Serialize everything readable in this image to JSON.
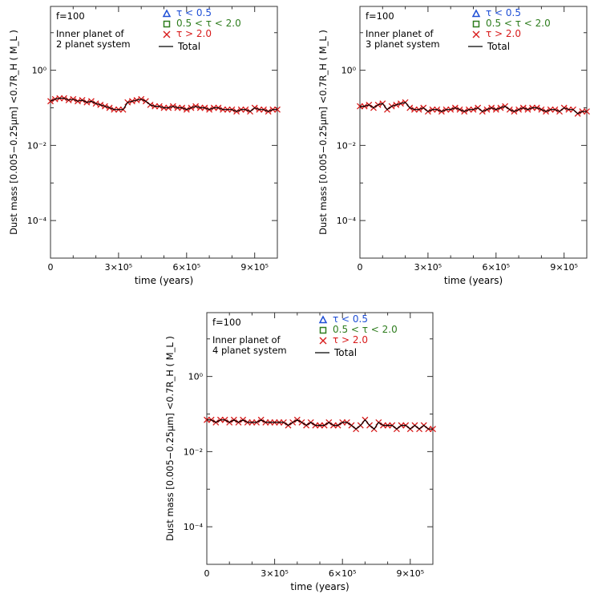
{
  "colors": {
    "triangle": "#1f4fd6",
    "square": "#2e7d1e",
    "cross": "#d81b1b",
    "total": "#000000",
    "axis": "#333333"
  },
  "chart_data": [
    {
      "type": "line",
      "annotation": "f=100",
      "label_lines": [
        "Inner planet of",
        "2 planet system"
      ],
      "xlabel": "time (years)",
      "ylabel": "Dust mass [0.005−0.25μm] <0.7R_H ( M_L )",
      "xlim": [
        0,
        1000000
      ],
      "ylim": [
        1e-05,
        50
      ],
      "yscale": "log",
      "xticks": [
        0,
        300000,
        600000,
        900000
      ],
      "xtick_labels": [
        "0",
        "3×10⁵",
        "6×10⁵",
        "9×10⁵"
      ],
      "yticks": [
        0.0001,
        0.01,
        1
      ],
      "ytick_labels": [
        "10⁻⁴",
        "10⁻²",
        "10⁰"
      ],
      "legend": [
        {
          "marker": "triangle",
          "label": "τ < 0.5"
        },
        {
          "marker": "square",
          "label": "0.5 < τ < 2.0"
        },
        {
          "marker": "cross",
          "label": "τ > 2.0"
        },
        {
          "marker": "line",
          "label": "Total"
        }
      ],
      "series": [
        {
          "name": "τ > 2.0",
          "marker": "cross",
          "x": [
            0,
            20000,
            40000,
            60000,
            80000,
            100000,
            120000,
            140000,
            160000,
            180000,
            200000,
            220000,
            240000,
            260000,
            280000,
            300000,
            320000,
            340000,
            360000,
            380000,
            400000,
            420000,
            440000,
            460000,
            480000,
            500000,
            520000,
            540000,
            560000,
            580000,
            600000,
            620000,
            640000,
            660000,
            680000,
            700000,
            720000,
            740000,
            760000,
            780000,
            800000,
            820000,
            840000,
            860000,
            880000,
            900000,
            920000,
            940000,
            960000,
            980000,
            1000000
          ],
          "y": [
            0.15,
            0.17,
            0.18,
            0.18,
            0.16,
            0.17,
            0.15,
            0.16,
            0.14,
            0.15,
            0.13,
            0.12,
            0.11,
            0.1,
            0.09,
            0.09,
            0.09,
            0.14,
            0.15,
            0.16,
            0.17,
            0.15,
            0.12,
            0.11,
            0.11,
            0.1,
            0.1,
            0.11,
            0.1,
            0.1,
            0.09,
            0.1,
            0.11,
            0.1,
            0.1,
            0.09,
            0.1,
            0.1,
            0.09,
            0.09,
            0.09,
            0.08,
            0.09,
            0.09,
            0.08,
            0.1,
            0.09,
            0.09,
            0.08,
            0.09,
            0.09
          ]
        },
        {
          "name": "Total",
          "marker": "line",
          "x": [
            0,
            20000,
            40000,
            60000,
            80000,
            100000,
            120000,
            140000,
            160000,
            180000,
            200000,
            220000,
            240000,
            260000,
            280000,
            300000,
            320000,
            340000,
            360000,
            380000,
            400000,
            420000,
            440000,
            460000,
            480000,
            500000,
            520000,
            540000,
            560000,
            580000,
            600000,
            620000,
            640000,
            660000,
            680000,
            700000,
            720000,
            740000,
            760000,
            780000,
            800000,
            820000,
            840000,
            860000,
            880000,
            900000,
            920000,
            940000,
            960000,
            980000,
            1000000
          ],
          "y": [
            0.15,
            0.17,
            0.18,
            0.18,
            0.16,
            0.17,
            0.15,
            0.16,
            0.14,
            0.15,
            0.13,
            0.12,
            0.11,
            0.1,
            0.09,
            0.09,
            0.09,
            0.14,
            0.15,
            0.16,
            0.17,
            0.15,
            0.12,
            0.11,
            0.11,
            0.1,
            0.1,
            0.11,
            0.1,
            0.1,
            0.09,
            0.1,
            0.11,
            0.1,
            0.1,
            0.09,
            0.1,
            0.1,
            0.09,
            0.09,
            0.09,
            0.08,
            0.09,
            0.09,
            0.08,
            0.1,
            0.09,
            0.09,
            0.08,
            0.09,
            0.09
          ]
        }
      ]
    },
    {
      "type": "line",
      "annotation": "f=100",
      "label_lines": [
        "Inner planet of",
        "3 planet system"
      ],
      "xlabel": "time (years)",
      "ylabel": "Dust mass [0.005−0.25μm] <0.7R_H ( M_L )",
      "xlim": [
        0,
        1000000
      ],
      "ylim": [
        1e-05,
        50
      ],
      "yscale": "log",
      "xticks": [
        0,
        300000,
        600000,
        900000
      ],
      "xtick_labels": [
        "0",
        "3×10⁵",
        "6×10⁵",
        "9×10⁵"
      ],
      "yticks": [
        0.0001,
        0.01,
        1
      ],
      "ytick_labels": [
        "10⁻⁴",
        "10⁻²",
        "10⁰"
      ],
      "legend": [
        {
          "marker": "triangle",
          "label": "τ < 0.5"
        },
        {
          "marker": "square",
          "label": "0.5 < τ < 2.0"
        },
        {
          "marker": "cross",
          "label": "τ > 2.0"
        },
        {
          "marker": "line",
          "label": "Total"
        }
      ],
      "series": [
        {
          "name": "τ > 2.0",
          "marker": "cross",
          "x": [
            0,
            20000,
            40000,
            60000,
            80000,
            100000,
            120000,
            140000,
            160000,
            180000,
            200000,
            220000,
            240000,
            260000,
            280000,
            300000,
            320000,
            340000,
            360000,
            380000,
            400000,
            420000,
            440000,
            460000,
            480000,
            500000,
            520000,
            540000,
            560000,
            580000,
            600000,
            620000,
            640000,
            660000,
            680000,
            700000,
            720000,
            740000,
            760000,
            780000,
            800000,
            820000,
            840000,
            860000,
            880000,
            900000,
            920000,
            940000,
            960000,
            980000,
            1000000
          ],
          "y": [
            0.11,
            0.11,
            0.12,
            0.1,
            0.12,
            0.13,
            0.09,
            0.11,
            0.12,
            0.13,
            0.14,
            0.1,
            0.09,
            0.09,
            0.1,
            0.08,
            0.09,
            0.09,
            0.08,
            0.09,
            0.09,
            0.1,
            0.09,
            0.08,
            0.09,
            0.09,
            0.1,
            0.08,
            0.09,
            0.1,
            0.09,
            0.1,
            0.11,
            0.09,
            0.08,
            0.09,
            0.1,
            0.09,
            0.1,
            0.1,
            0.09,
            0.08,
            0.09,
            0.09,
            0.08,
            0.1,
            0.09,
            0.09,
            0.07,
            0.08,
            0.08
          ]
        },
        {
          "name": "Total",
          "marker": "line",
          "x": [
            0,
            20000,
            40000,
            60000,
            80000,
            100000,
            120000,
            140000,
            160000,
            180000,
            200000,
            220000,
            240000,
            260000,
            280000,
            300000,
            320000,
            340000,
            360000,
            380000,
            400000,
            420000,
            440000,
            460000,
            480000,
            500000,
            520000,
            540000,
            560000,
            580000,
            600000,
            620000,
            640000,
            660000,
            680000,
            700000,
            720000,
            740000,
            760000,
            780000,
            800000,
            820000,
            840000,
            860000,
            880000,
            900000,
            920000,
            940000,
            960000,
            980000,
            1000000
          ],
          "y": [
            0.11,
            0.11,
            0.12,
            0.1,
            0.12,
            0.13,
            0.09,
            0.11,
            0.12,
            0.13,
            0.14,
            0.1,
            0.09,
            0.09,
            0.1,
            0.08,
            0.09,
            0.09,
            0.08,
            0.09,
            0.09,
            0.1,
            0.09,
            0.08,
            0.09,
            0.09,
            0.1,
            0.08,
            0.09,
            0.1,
            0.09,
            0.1,
            0.11,
            0.09,
            0.08,
            0.09,
            0.1,
            0.09,
            0.1,
            0.1,
            0.09,
            0.08,
            0.09,
            0.09,
            0.08,
            0.1,
            0.09,
            0.09,
            0.07,
            0.08,
            0.08
          ]
        }
      ]
    },
    {
      "type": "line",
      "annotation": "f=100",
      "label_lines": [
        "Inner planet of",
        "4 planet system"
      ],
      "xlabel": "time (years)",
      "ylabel": "Dust mass [0.005−0.25μm] <0.7R_H ( M_L )",
      "xlim": [
        0,
        1000000
      ],
      "ylim": [
        1e-05,
        50
      ],
      "yscale": "log",
      "xticks": [
        0,
        300000,
        600000,
        900000
      ],
      "xtick_labels": [
        "0",
        "3×10⁵",
        "6×10⁵",
        "9×10⁵"
      ],
      "yticks": [
        0.0001,
        0.01,
        1
      ],
      "ytick_labels": [
        "10⁻⁴",
        "10⁻²",
        "10⁰"
      ],
      "legend": [
        {
          "marker": "triangle",
          "label": "τ < 0.5"
        },
        {
          "marker": "square",
          "label": "0.5 < τ < 2.0"
        },
        {
          "marker": "cross",
          "label": "τ > 2.0"
        },
        {
          "marker": "line",
          "label": "Total"
        }
      ],
      "series": [
        {
          "name": "τ > 2.0",
          "marker": "cross",
          "x": [
            0,
            20000,
            40000,
            60000,
            80000,
            100000,
            120000,
            140000,
            160000,
            180000,
            200000,
            220000,
            240000,
            260000,
            280000,
            300000,
            320000,
            340000,
            360000,
            380000,
            400000,
            420000,
            440000,
            460000,
            480000,
            500000,
            520000,
            540000,
            560000,
            580000,
            600000,
            620000,
            640000,
            660000,
            680000,
            700000,
            720000,
            740000,
            760000,
            780000,
            800000,
            820000,
            840000,
            860000,
            880000,
            900000,
            920000,
            940000,
            960000,
            980000,
            1000000
          ],
          "y": [
            0.07,
            0.07,
            0.06,
            0.07,
            0.07,
            0.06,
            0.07,
            0.06,
            0.07,
            0.06,
            0.06,
            0.06,
            0.07,
            0.06,
            0.06,
            0.06,
            0.06,
            0.06,
            0.05,
            0.06,
            0.07,
            0.06,
            0.05,
            0.06,
            0.05,
            0.05,
            0.05,
            0.06,
            0.05,
            0.05,
            0.06,
            0.06,
            0.05,
            0.04,
            0.05,
            0.07,
            0.05,
            0.04,
            0.06,
            0.05,
            0.05,
            0.05,
            0.04,
            0.05,
            0.05,
            0.04,
            0.05,
            0.04,
            0.05,
            0.04,
            0.04
          ]
        },
        {
          "name": "Total",
          "marker": "line",
          "x": [
            0,
            20000,
            40000,
            60000,
            80000,
            100000,
            120000,
            140000,
            160000,
            180000,
            200000,
            220000,
            240000,
            260000,
            280000,
            300000,
            320000,
            340000,
            360000,
            380000,
            400000,
            420000,
            440000,
            460000,
            480000,
            500000,
            520000,
            540000,
            560000,
            580000,
            600000,
            620000,
            640000,
            660000,
            680000,
            700000,
            720000,
            740000,
            760000,
            780000,
            800000,
            820000,
            840000,
            860000,
            880000,
            900000,
            920000,
            940000,
            960000,
            980000,
            1000000
          ],
          "y": [
            0.07,
            0.07,
            0.06,
            0.07,
            0.07,
            0.06,
            0.07,
            0.06,
            0.07,
            0.06,
            0.06,
            0.06,
            0.07,
            0.06,
            0.06,
            0.06,
            0.06,
            0.06,
            0.05,
            0.06,
            0.07,
            0.06,
            0.05,
            0.06,
            0.05,
            0.05,
            0.05,
            0.06,
            0.05,
            0.05,
            0.06,
            0.06,
            0.05,
            0.04,
            0.05,
            0.07,
            0.05,
            0.04,
            0.06,
            0.05,
            0.05,
            0.05,
            0.04,
            0.05,
            0.05,
            0.04,
            0.05,
            0.04,
            0.05,
            0.04,
            0.04
          ]
        }
      ]
    }
  ]
}
